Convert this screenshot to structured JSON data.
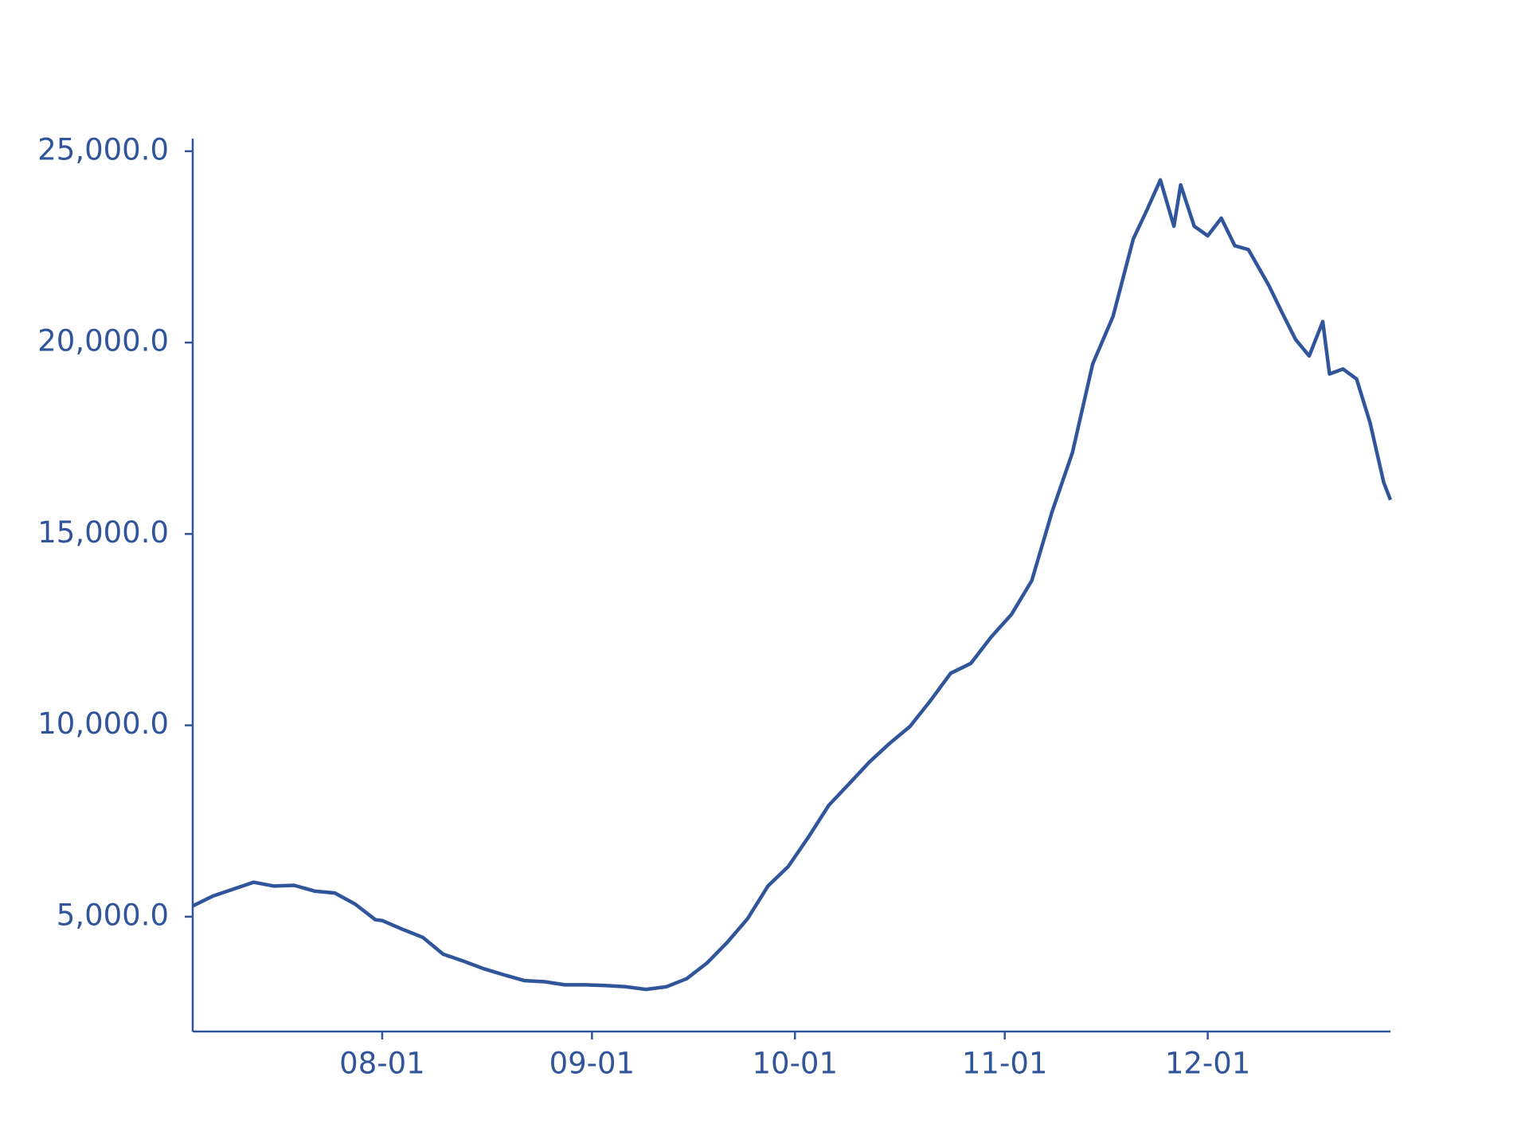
{
  "chart_data": {
    "type": "line",
    "x": [
      "07-04",
      "07-07",
      "07-10",
      "07-13",
      "07-16",
      "07-19",
      "07-22",
      "07-25",
      "07-28",
      "07-31",
      "08-01",
      "08-04",
      "08-07",
      "08-10",
      "08-13",
      "08-16",
      "08-19",
      "08-22",
      "08-25",
      "08-28",
      "08-31",
      "09-03",
      "09-06",
      "09-09",
      "09-12",
      "09-15",
      "09-18",
      "09-21",
      "09-24",
      "09-27",
      "09-30",
      "10-03",
      "10-06",
      "10-09",
      "10-12",
      "10-15",
      "10-18",
      "10-21",
      "10-24",
      "10-27",
      "10-30",
      "11-02",
      "11-05",
      "11-08",
      "11-11",
      "11-14",
      "11-17",
      "11-20",
      "11-22",
      "11-24",
      "11-26",
      "11-27",
      "11-29",
      "12-01",
      "12-03",
      "12-05",
      "12-07",
      "12-10",
      "12-12",
      "12-14",
      "12-16",
      "12-18",
      "12-19",
      "12-21",
      "12-23",
      "12-25",
      "12-27",
      "12-28"
    ],
    "values": [
      5280,
      5540,
      5720,
      5900,
      5800,
      5820,
      5670,
      5620,
      5330,
      4920,
      4900,
      4670,
      4460,
      4020,
      3840,
      3640,
      3480,
      3330,
      3300,
      3220,
      3220,
      3200,
      3170,
      3100,
      3170,
      3380,
      3790,
      4330,
      4950,
      5800,
      6310,
      7080,
      7910,
      8470,
      9040,
      9530,
      9970,
      10640,
      11360,
      11620,
      12310,
      12900,
      13780,
      15580,
      17120,
      19440,
      20680,
      22710,
      23460,
      24250,
      23040,
      24120,
      23040,
      22790,
      23250,
      22530,
      22430,
      21500,
      20780,
      20080,
      19650,
      20550,
      19180,
      19310,
      19050,
      17900,
      16350,
      15890
    ],
    "color": "#30559a",
    "xlim": [
      "07-04",
      "12-28"
    ],
    "xticks": [
      "08-01",
      "09-01",
      "10-01",
      "11-01",
      "12-01"
    ],
    "ylim": [
      2000,
      25330
    ],
    "yticks": [
      {
        "value": 5000,
        "label": "5,000.0"
      },
      {
        "value": 10000,
        "label": "10,000.0"
      },
      {
        "value": 15000,
        "label": "15,000.0"
      },
      {
        "value": 20000,
        "label": "20,000.0"
      },
      {
        "value": 25000,
        "label": "25,000.0"
      }
    ]
  }
}
